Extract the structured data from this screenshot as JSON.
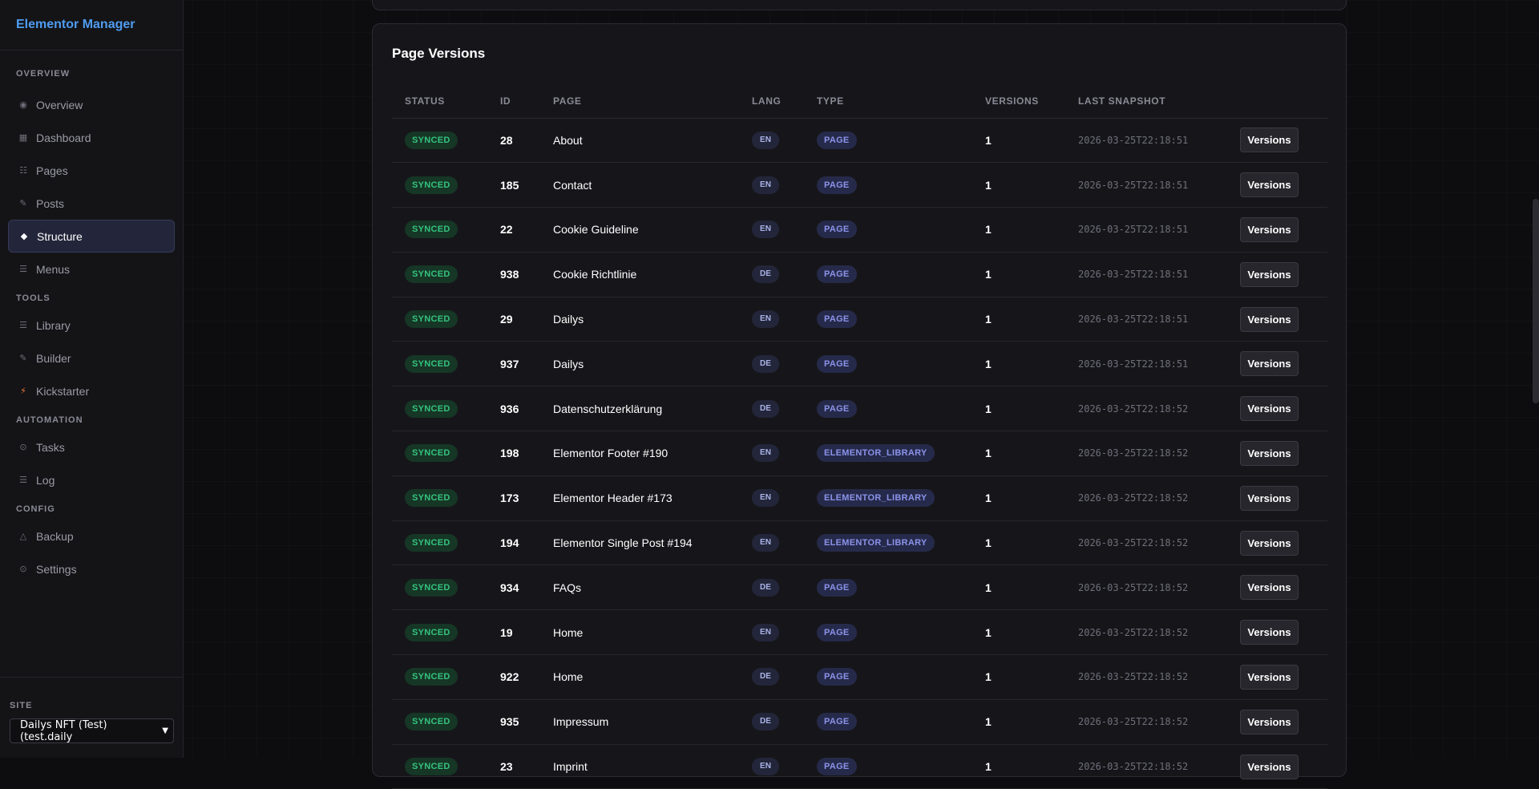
{
  "app": {
    "title": "Elementor Manager"
  },
  "sidebar": {
    "sections": [
      {
        "label": "OVERVIEW",
        "items": [
          {
            "label": "Overview",
            "icon": "overview-icon"
          },
          {
            "label": "Dashboard",
            "icon": "dashboard-icon"
          },
          {
            "label": "Pages",
            "icon": "pages-icon"
          },
          {
            "label": "Posts",
            "icon": "posts-icon"
          },
          {
            "label": "Structure",
            "icon": "structure-icon",
            "active": true
          },
          {
            "label": "Menus",
            "icon": "menus-icon"
          }
        ]
      },
      {
        "label": "TOOLS",
        "items": [
          {
            "label": "Library",
            "icon": "library-icon"
          },
          {
            "label": "Builder",
            "icon": "builder-icon"
          },
          {
            "label": "Kickstarter",
            "icon": "kickstarter-icon"
          }
        ]
      },
      {
        "label": "AUTOMATION",
        "items": [
          {
            "label": "Tasks",
            "icon": "tasks-icon"
          },
          {
            "label": "Log",
            "icon": "log-icon"
          }
        ]
      },
      {
        "label": "CONFIG",
        "items": [
          {
            "label": "Backup",
            "icon": "backup-icon"
          },
          {
            "label": "Settings",
            "icon": "settings-icon"
          }
        ]
      }
    ],
    "site": {
      "label": "SITE",
      "selected": "Dailys NFT (Test) (test.daily"
    }
  },
  "page_versions": {
    "title": "Page Versions",
    "columns": [
      "STATUS",
      "ID",
      "PAGE",
      "LANG",
      "TYPE",
      "VERSIONS",
      "LAST SNAPSHOT",
      ""
    ],
    "button_label": "Versions",
    "rows": [
      {
        "status": "SYNCED",
        "id": "28",
        "page": "About",
        "lang": "EN",
        "type": "PAGE",
        "versions": "1",
        "snapshot": "2026-03-25T22:18:51"
      },
      {
        "status": "SYNCED",
        "id": "185",
        "page": "Contact",
        "lang": "EN",
        "type": "PAGE",
        "versions": "1",
        "snapshot": "2026-03-25T22:18:51"
      },
      {
        "status": "SYNCED",
        "id": "22",
        "page": "Cookie Guideline",
        "lang": "EN",
        "type": "PAGE",
        "versions": "1",
        "snapshot": "2026-03-25T22:18:51"
      },
      {
        "status": "SYNCED",
        "id": "938",
        "page": "Cookie Richtlinie",
        "lang": "DE",
        "type": "PAGE",
        "versions": "1",
        "snapshot": "2026-03-25T22:18:51"
      },
      {
        "status": "SYNCED",
        "id": "29",
        "page": "Dailys",
        "lang": "EN",
        "type": "PAGE",
        "versions": "1",
        "snapshot": "2026-03-25T22:18:51"
      },
      {
        "status": "SYNCED",
        "id": "937",
        "page": "Dailys",
        "lang": "DE",
        "type": "PAGE",
        "versions": "1",
        "snapshot": "2026-03-25T22:18:51"
      },
      {
        "status": "SYNCED",
        "id": "936",
        "page": "Datenschutzerklärung",
        "lang": "DE",
        "type": "PAGE",
        "versions": "1",
        "snapshot": "2026-03-25T22:18:52"
      },
      {
        "status": "SYNCED",
        "id": "198",
        "page": "Elementor Footer #190",
        "lang": "EN",
        "type": "ELEMENTOR_LIBRARY",
        "versions": "1",
        "snapshot": "2026-03-25T22:18:52"
      },
      {
        "status": "SYNCED",
        "id": "173",
        "page": "Elementor Header #173",
        "lang": "EN",
        "type": "ELEMENTOR_LIBRARY",
        "versions": "1",
        "snapshot": "2026-03-25T22:18:52"
      },
      {
        "status": "SYNCED",
        "id": "194",
        "page": "Elementor Single Post #194",
        "lang": "EN",
        "type": "ELEMENTOR_LIBRARY",
        "versions": "1",
        "snapshot": "2026-03-25T22:18:52"
      },
      {
        "status": "SYNCED",
        "id": "934",
        "page": "FAQs",
        "lang": "DE",
        "type": "PAGE",
        "versions": "1",
        "snapshot": "2026-03-25T22:18:52"
      },
      {
        "status": "SYNCED",
        "id": "19",
        "page": "Home",
        "lang": "EN",
        "type": "PAGE",
        "versions": "1",
        "snapshot": "2026-03-25T22:18:52"
      },
      {
        "status": "SYNCED",
        "id": "922",
        "page": "Home",
        "lang": "DE",
        "type": "PAGE",
        "versions": "1",
        "snapshot": "2026-03-25T22:18:52"
      },
      {
        "status": "SYNCED",
        "id": "935",
        "page": "Impressum",
        "lang": "DE",
        "type": "PAGE",
        "versions": "1",
        "snapshot": "2026-03-25T22:18:52"
      },
      {
        "status": "SYNCED",
        "id": "23",
        "page": "Imprint",
        "lang": "EN",
        "type": "PAGE",
        "versions": "1",
        "snapshot": "2026-03-25T22:18:52"
      }
    ]
  },
  "colors": {
    "brand": "#4f9cf0",
    "synced": "#35c37e",
    "type_badge": "#8b93ea",
    "background": "#0d0d0f",
    "kickstarter_icon": "#f07a3a"
  }
}
